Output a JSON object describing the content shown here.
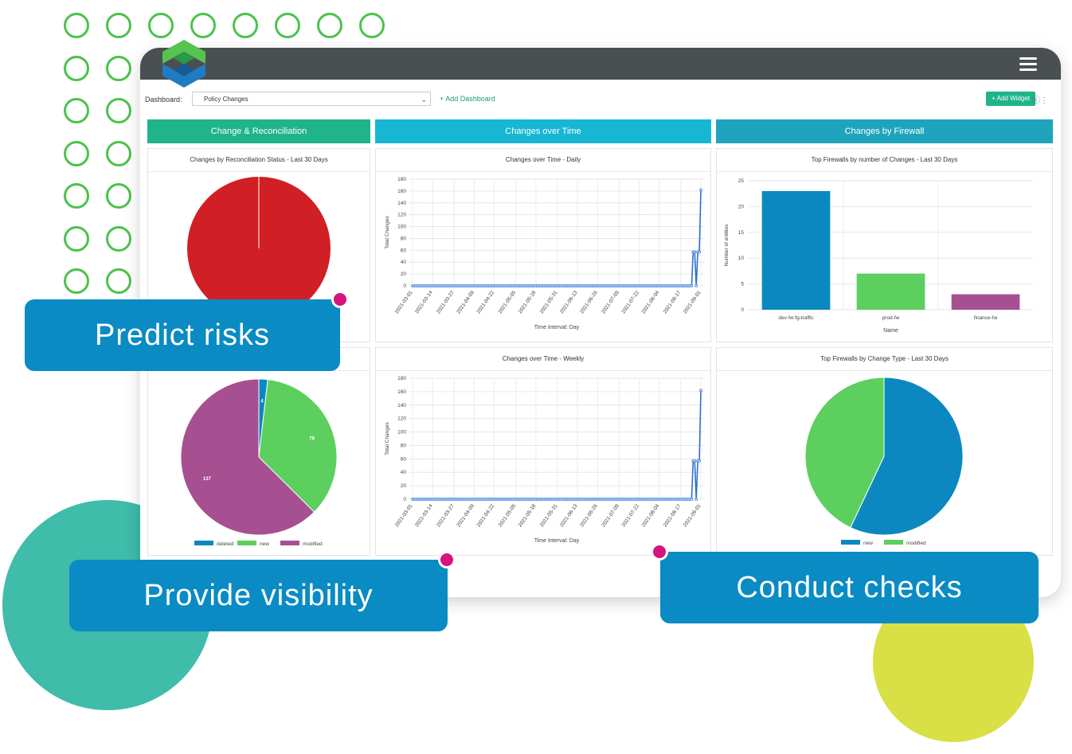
{
  "toolbar": {
    "dashboard_label": "Dashboard:",
    "dashboard_value": "Policy Changes",
    "add_dashboard": "+ Add Dashboard",
    "add_widget": "+ Add Widget"
  },
  "columns": [
    {
      "title": "Change & Reconciliation",
      "color": "#1fb48a"
    },
    {
      "title": "Changes over Time",
      "color": "#17b7d4"
    },
    {
      "title": "Changes by Firewall",
      "color": "#1ea5bd"
    }
  ],
  "panels": {
    "recon": {
      "title": "Changes by Reconciliation Status - Last 30 Days"
    },
    "daily": {
      "title": "Changes over Time - Daily",
      "ylabel": "Total Changes",
      "xlabel": "Time Interval: Day"
    },
    "weekly": {
      "title": "Changes over Time - Weekly",
      "ylabel": "Total Changes",
      "xlabel": "Time Interval: Day"
    },
    "topfw": {
      "title": "Top Firewalls by number of Changes - Last 30 Days",
      "ylabel": "Number of entities",
      "xlabel": "Name"
    },
    "fwtype": {
      "title": "Top Firewalls by Change Type - Last 30 Days"
    }
  },
  "callouts": {
    "predict": "Predict risks",
    "visibility": "Provide visibility",
    "checks": "Conduct checks"
  },
  "chart_data": [
    {
      "type": "pie",
      "title": "Changes by Reconciliation Status - Last 30 Days",
      "slices": [
        {
          "value": 100,
          "color": "#d01f25"
        }
      ]
    },
    {
      "type": "line",
      "title": "Changes over Time - Daily",
      "ylabel": "Total Changes",
      "xlabel": "Time Interval: Day",
      "ylim": [
        0,
        180
      ],
      "yticks": [
        0,
        20,
        40,
        60,
        80,
        100,
        120,
        140,
        160,
        180
      ],
      "xticks": [
        "2021-03-01",
        "2021-03-14",
        "2021-03-27",
        "2021-04-09",
        "2021-04-22",
        "2021-05-05",
        "2021-05-18",
        "2021-05-31",
        "2021-06-13",
        "2021-06-26",
        "2021-07-09",
        "2021-07-22",
        "2021-08-04",
        "2021-08-17",
        "2021-09-01"
      ],
      "values": [
        0,
        0,
        0,
        0,
        0,
        0,
        0,
        0,
        0,
        0,
        0,
        0,
        0,
        0,
        0,
        0,
        0,
        0,
        0,
        0,
        0,
        0,
        0,
        0,
        0,
        0,
        0,
        0,
        0,
        0,
        0,
        0,
        0,
        0,
        0,
        0,
        0,
        0,
        0,
        0,
        0,
        0,
        0,
        0,
        0,
        0,
        0,
        0,
        0,
        0,
        0,
        0,
        0,
        0,
        0,
        0,
        0,
        0,
        0,
        0,
        0,
        0,
        0,
        0,
        0,
        0,
        0,
        0,
        0,
        0,
        0,
        0,
        0,
        0,
        0,
        0,
        0,
        0,
        0,
        0,
        0,
        0,
        0,
        0,
        0,
        0,
        0,
        0,
        0,
        0,
        0,
        0,
        0,
        0,
        0,
        0,
        0,
        0,
        0,
        0,
        0,
        0,
        0,
        0,
        0,
        0,
        0,
        0,
        0,
        0,
        0,
        0,
        0,
        0,
        0,
        0,
        0,
        0,
        0,
        0,
        0,
        0,
        0,
        0,
        0,
        0,
        0,
        0,
        0,
        0,
        0,
        0,
        0,
        0,
        0,
        0,
        0,
        0,
        0,
        0,
        0,
        0,
        0,
        0,
        0,
        0,
        0,
        0,
        0,
        0,
        0,
        0,
        0,
        0,
        0,
        0,
        0,
        0,
        0,
        0,
        0,
        0,
        0,
        0,
        0,
        0,
        0,
        0,
        0,
        0,
        0,
        0,
        0,
        0,
        0,
        0,
        0,
        0,
        0,
        0,
        0,
        0,
        57,
        57,
        0,
        57,
        57,
        162
      ]
    },
    {
      "type": "line",
      "title": "Changes over Time - Weekly",
      "ylabel": "Total Changes",
      "xlabel": "Time Interval: Day",
      "ylim": [
        0,
        180
      ],
      "yticks": [
        0,
        20,
        40,
        60,
        80,
        100,
        120,
        140,
        160,
        180
      ],
      "xticks": [
        "2021-03-01",
        "2021-03-14",
        "2021-03-27",
        "2021-04-09",
        "2021-04-22",
        "2021-05-05",
        "2021-05-18",
        "2021-05-31",
        "2021-06-13",
        "2021-06-26",
        "2021-07-09",
        "2021-07-22",
        "2021-08-04",
        "2021-08-17",
        "2021-09-01"
      ],
      "values": [
        0,
        0,
        0,
        0,
        0,
        0,
        0,
        0,
        0,
        0,
        0,
        0,
        0,
        0,
        0,
        0,
        0,
        0,
        0,
        0,
        0,
        0,
        0,
        0,
        0,
        0,
        0,
        0,
        0,
        0,
        0,
        0,
        0,
        0,
        0,
        0,
        0,
        0,
        0,
        0,
        0,
        0,
        0,
        0,
        0,
        0,
        0,
        0,
        0,
        0,
        0,
        0,
        0,
        0,
        0,
        0,
        0,
        0,
        0,
        0,
        0,
        0,
        0,
        0,
        0,
        0,
        0,
        0,
        0,
        0,
        0,
        0,
        0,
        0,
        0,
        0,
        0,
        0,
        0,
        0,
        0,
        0,
        0,
        0,
        0,
        0,
        0,
        0,
        0,
        0,
        0,
        0,
        0,
        0,
        0,
        0,
        0,
        0,
        0,
        0,
        0,
        0,
        0,
        0,
        0,
        0,
        0,
        0,
        0,
        0,
        0,
        0,
        0,
        0,
        0,
        0,
        0,
        0,
        0,
        0,
        0,
        0,
        0,
        0,
        0,
        0,
        0,
        0,
        0,
        0,
        0,
        0,
        0,
        0,
        0,
        0,
        0,
        0,
        0,
        0,
        0,
        0,
        0,
        0,
        0,
        0,
        0,
        0,
        0,
        0,
        0,
        0,
        0,
        0,
        0,
        0,
        0,
        0,
        0,
        0,
        0,
        0,
        0,
        0,
        0,
        0,
        0,
        0,
        0,
        0,
        0,
        0,
        0,
        0,
        0,
        0,
        0,
        0,
        0,
        0,
        0,
        0,
        57,
        57,
        0,
        57,
        57,
        162
      ]
    },
    {
      "type": "bar",
      "title": "Top Firewalls by number of Changes - Last 30 Days",
      "ylabel": "Number of entities",
      "xlabel": "Name",
      "ylim": [
        0,
        25
      ],
      "yticks": [
        0,
        5,
        10,
        15,
        20,
        25
      ],
      "categories": [
        "dev-fw:fg-traffic",
        "prod-fw",
        "finance-fw"
      ],
      "values": [
        23,
        7,
        3
      ],
      "colors": [
        "#0c88c0",
        "#5ccf5e",
        "#a64f91"
      ]
    },
    {
      "type": "pie",
      "title": "",
      "slices": [
        {
          "name": "deleted",
          "value": 4,
          "color": "#0c88c0"
        },
        {
          "name": "new",
          "value": 78,
          "color": "#5ccf5e"
        },
        {
          "name": "modified",
          "value": 137,
          "color": "#a64f91"
        }
      ],
      "legend": [
        "deleted",
        "new",
        "modified"
      ]
    },
    {
      "type": "pie",
      "title": "Top Firewalls by Change Type - Last 30 Days",
      "slices": [
        {
          "name": "new",
          "value": 57,
          "color": "#0c88c0"
        },
        {
          "name": "modified",
          "value": 43,
          "color": "#5ccf5e"
        }
      ],
      "legend": [
        "new",
        "modified"
      ]
    }
  ]
}
